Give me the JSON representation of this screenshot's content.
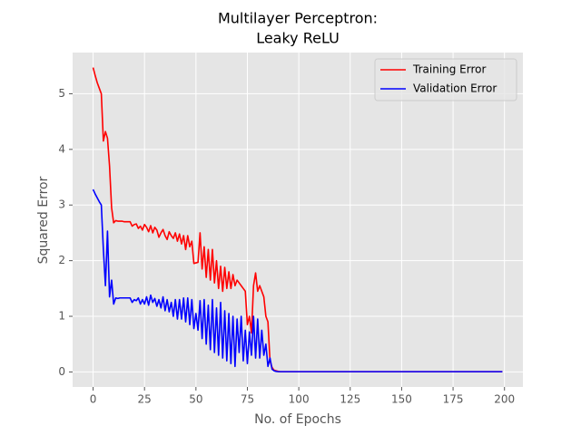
{
  "chart_data": {
    "type": "line",
    "title": [
      "Multilayer Perceptron:",
      "Leaky ReLU"
    ],
    "xlabel": "No. of Epochs",
    "ylabel": "Squared Error",
    "x": [
      0,
      1,
      2,
      3,
      4,
      5,
      6,
      7,
      8,
      9,
      10,
      11,
      12,
      13,
      14,
      15,
      16,
      17,
      18,
      19,
      20,
      21,
      22,
      23,
      24,
      25,
      26,
      27,
      28,
      29,
      30,
      31,
      32,
      33,
      34,
      35,
      36,
      37,
      38,
      39,
      40,
      41,
      42,
      43,
      44,
      45,
      46,
      47,
      48,
      49,
      50,
      51,
      52,
      53,
      54,
      55,
      56,
      57,
      58,
      59,
      60,
      61,
      62,
      63,
      64,
      65,
      66,
      67,
      68,
      69,
      70,
      71,
      72,
      73,
      74,
      75,
      76,
      77,
      78,
      79,
      80,
      81,
      82,
      83,
      84,
      85,
      86,
      87,
      88,
      89,
      90,
      91,
      92,
      93,
      94,
      95,
      199
    ],
    "series": [
      {
        "name": "Training Error",
        "color": "#ff0000",
        "values": [
          5.47,
          5.33,
          5.2,
          5.1,
          5.0,
          4.15,
          4.32,
          4.2,
          3.7,
          2.95,
          2.68,
          2.72,
          2.71,
          2.71,
          2.71,
          2.7,
          2.7,
          2.7,
          2.7,
          2.62,
          2.65,
          2.66,
          2.58,
          2.62,
          2.55,
          2.65,
          2.6,
          2.52,
          2.63,
          2.5,
          2.6,
          2.55,
          2.42,
          2.5,
          2.56,
          2.45,
          2.38,
          2.52,
          2.45,
          2.4,
          2.5,
          2.35,
          2.48,
          2.3,
          2.45,
          2.2,
          2.45,
          2.25,
          2.35,
          1.95,
          1.96,
          1.97,
          2.5,
          1.85,
          2.25,
          1.7,
          2.2,
          1.65,
          2.2,
          1.6,
          2.0,
          1.5,
          1.9,
          1.45,
          1.88,
          1.5,
          1.8,
          1.5,
          1.75,
          1.55,
          1.65,
          1.6,
          1.55,
          1.5,
          1.45,
          0.85,
          1.0,
          0.7,
          1.55,
          1.78,
          1.45,
          1.55,
          1.45,
          1.35,
          1.0,
          0.9,
          0.2,
          0.08,
          0.03,
          0.02,
          0.01,
          0.005,
          0.005,
          0.005,
          0.005,
          0.005,
          0.005
        ]
      },
      {
        "name": "Validation Error",
        "color": "#0000ff",
        "values": [
          3.28,
          3.2,
          3.13,
          3.06,
          3.0,
          2.2,
          1.55,
          2.53,
          1.35,
          1.65,
          1.22,
          1.33,
          1.32,
          1.33,
          1.33,
          1.33,
          1.33,
          1.33,
          1.33,
          1.25,
          1.3,
          1.28,
          1.33,
          1.22,
          1.3,
          1.22,
          1.35,
          1.2,
          1.38,
          1.25,
          1.32,
          1.18,
          1.3,
          1.15,
          1.35,
          1.1,
          1.3,
          1.08,
          1.25,
          1.0,
          1.3,
          0.95,
          1.3,
          0.95,
          1.33,
          0.9,
          1.33,
          0.85,
          1.3,
          0.78,
          1.05,
          0.75,
          1.28,
          0.6,
          1.3,
          0.5,
          1.2,
          0.4,
          1.3,
          0.35,
          1.15,
          0.3,
          1.25,
          0.25,
          1.1,
          0.2,
          1.05,
          0.15,
          1.0,
          0.1,
          0.95,
          0.35,
          1.0,
          0.2,
          0.75,
          0.15,
          0.72,
          0.3,
          1.0,
          0.25,
          0.95,
          0.25,
          0.75,
          0.3,
          0.5,
          0.1,
          0.25,
          0.05,
          0.02,
          0.01,
          0.005,
          0.005,
          0.005,
          0.005,
          0.005,
          0.005,
          0.005
        ]
      }
    ],
    "xlim": [
      -9.95,
      208.95
    ],
    "xticks": [
      0,
      25,
      50,
      75,
      100,
      125,
      150,
      175,
      200
    ],
    "ylim": [
      -0.27,
      5.74
    ],
    "yticks": [
      0,
      1,
      2,
      3,
      4,
      5
    ],
    "grid": true,
    "legend": "upper right"
  }
}
